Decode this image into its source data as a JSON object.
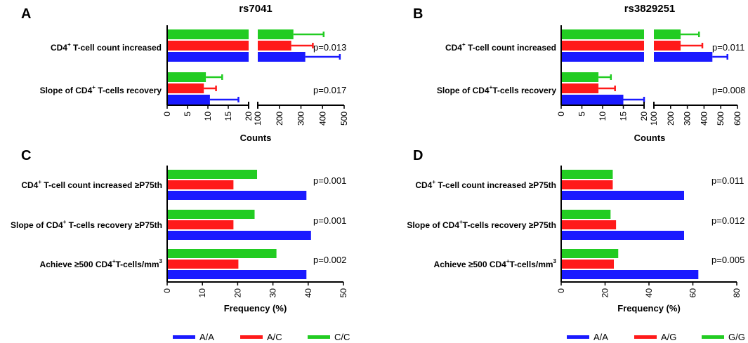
{
  "chart_data": [
    {
      "panel": "A",
      "type": "bar",
      "orientation": "horizontal",
      "title": "rs7041",
      "xlabel": "Counts",
      "axis_break": {
        "segment1": [
          0,
          20
        ],
        "segment2": [
          100,
          500
        ]
      },
      "segment1_ticks": [
        "0",
        "5",
        "10",
        "15",
        "20"
      ],
      "segment2_ticks": [
        "100",
        "200",
        "300",
        "400",
        "500"
      ],
      "categories": [
        {
          "pre": "CD4",
          "sup": "+",
          "post": " T-cell count increased",
          "p": "p=0.013"
        },
        {
          "pre": "Slope of CD4",
          "sup": "+",
          "post": " T-cells recovery",
          "p": "p=0.017"
        }
      ],
      "series": [
        {
          "name": "C/C",
          "color": "#22cc22",
          "values": [
            265,
            9.5
          ],
          "errors": [
            140,
            4
          ]
        },
        {
          "name": "A/C",
          "color": "#ff1a1a",
          "values": [
            255,
            9
          ],
          "errors": [
            100,
            3
          ]
        },
        {
          "name": "A/A",
          "color": "#1a1aff",
          "values": [
            320,
            10.5
          ],
          "errors": [
            160,
            7
          ]
        }
      ]
    },
    {
      "panel": "B",
      "type": "bar",
      "orientation": "horizontal",
      "title": "rs3829251",
      "xlabel": "Counts",
      "axis_break": {
        "segment1": [
          0,
          20
        ],
        "segment2": [
          100,
          600
        ]
      },
      "segment1_ticks": [
        "0",
        "5",
        "10",
        "15",
        "20"
      ],
      "segment2_ticks": [
        "100",
        "200",
        "300",
        "400",
        "500",
        "600"
      ],
      "categories": [
        {
          "pre": "CD4",
          "sup": "+",
          "post": " T-cell count increased",
          "p": "p=0.011"
        },
        {
          "pre": "Slope of CD4",
          "sup": "+",
          "post": "T-cells recovery",
          "p": "p=0.008"
        }
      ],
      "series": [
        {
          "name": "G/G",
          "color": "#22cc22",
          "values": [
            260,
            9
          ],
          "errors": [
            110,
            3
          ]
        },
        {
          "name": "A/G",
          "color": "#ff1a1a",
          "values": [
            260,
            9
          ],
          "errors": [
            130,
            4
          ]
        },
        {
          "name": "A/A",
          "color": "#1a1aff",
          "values": [
            450,
            15
          ],
          "errors": [
            90,
            5
          ]
        }
      ]
    },
    {
      "panel": "C",
      "type": "bar",
      "orientation": "horizontal",
      "xlabel": "Frequency (%)",
      "xlim": [
        0,
        50
      ],
      "ticks": [
        "0",
        "10",
        "20",
        "30",
        "40",
        "50"
      ],
      "categories": [
        {
          "pre": "CD4",
          "sup": "+",
          "post": " T-cell count increased ≥P75th",
          "p": "p=0.001"
        },
        {
          "pre": "Slope of CD4",
          "sup": "+",
          "post": " T-cells recovery ≥P75th",
          "p": "p=0.001"
        },
        {
          "pre": "Achieve ≥500 CD4",
          "sup": "+",
          "post": "T-cells/mm",
          "sup2": "3",
          "p": "p=0.002"
        }
      ],
      "series": [
        {
          "name": "C/C",
          "color": "#22cc22",
          "values": [
            25.5,
            24.8,
            31
          ]
        },
        {
          "name": "A/C",
          "color": "#ff1a1a",
          "values": [
            18.8,
            18.8,
            20.2
          ]
        },
        {
          "name": "A/A",
          "color": "#1a1aff",
          "values": [
            39.5,
            40.8,
            39.5
          ]
        }
      ],
      "legend": [
        {
          "label": "A/A",
          "color": "#1a1aff"
        },
        {
          "label": "A/C",
          "color": "#ff1a1a"
        },
        {
          "label": "C/C",
          "color": "#22cc22"
        }
      ]
    },
    {
      "panel": "D",
      "type": "bar",
      "orientation": "horizontal",
      "xlabel": "Frequency (%)",
      "xlim": [
        0,
        80
      ],
      "ticks": [
        "0",
        "20",
        "40",
        "60",
        "80"
      ],
      "categories": [
        {
          "pre": "CD4",
          "sup": "+",
          "post": " T-cell count increased ≥P75th",
          "p": "p=0.011"
        },
        {
          "pre": "Slope of CD4",
          "sup": "+",
          "post": "T-cells recovery ≥P75th",
          "p": "p=0.012"
        },
        {
          "pre": "Achieve ≥500 CD4",
          "sup": "+",
          "post": "T-cells/mm",
          "sup2": "3",
          "p": "p=0.005"
        }
      ],
      "series": [
        {
          "name": "G/G",
          "color": "#22cc22",
          "values": [
            23.5,
            22.5,
            26
          ]
        },
        {
          "name": "A/G",
          "color": "#ff1a1a",
          "values": [
            23.5,
            25,
            24
          ]
        },
        {
          "name": "A/A",
          "color": "#1a1aff",
          "values": [
            56,
            56,
            62.5
          ]
        }
      ],
      "legend": [
        {
          "label": "A/A",
          "color": "#1a1aff"
        },
        {
          "label": "A/G",
          "color": "#ff1a1a"
        },
        {
          "label": "G/G",
          "color": "#22cc22"
        }
      ]
    }
  ]
}
